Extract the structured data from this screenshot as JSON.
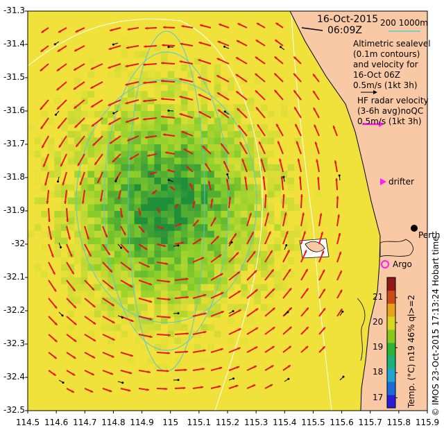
{
  "map": {
    "lon_range": [
      114.5,
      115.9
    ],
    "lat_range": [
      -32.5,
      -31.3
    ],
    "lon_ticks": [
      "114.5",
      "114.6",
      "114.7",
      "114.8",
      "114.9",
      "115",
      "115.1",
      "115.2",
      "115.3",
      "115.4",
      "115.5",
      "115.6",
      "115.7",
      "115.8",
      "115.9"
    ],
    "lat_ticks": [
      "-31.3",
      "-31.4",
      "-31.5",
      "-31.6",
      "-31.7",
      "-31.8",
      "-31.9",
      "-32",
      "-32.1",
      "-32.2",
      "-32.3",
      "-32.4",
      "-32.5"
    ],
    "colors": {
      "land": "#f8c9a4",
      "sst_low": "#1f8f3a",
      "sst_mid": "#8ccf2a",
      "sst_high": "#f0e23a",
      "radar_arrow": "#e8161b",
      "sealevel_contour": "#57c7d6",
      "bathy_contour": "#ffffff",
      "drifter": "#ff19ff",
      "argo": "#ff19ff"
    }
  },
  "legend": {
    "date": "16-Oct-2015",
    "time": "06:09Z",
    "bathymetry": "200  1000m",
    "altimetry_line1": "Altimetric sealevel",
    "altimetry_line2": "(0.1m contours)",
    "altimetry_line3": "and velocity for",
    "altimetry_line4": "16-Oct 06Z",
    "altimetry_line5": "0.5m/s (1kt 3h)",
    "radar_line1": "HF radar velocity",
    "radar_line2": "(3-6h avg)noQC",
    "radar_line3": "0.5m/s (1kt 3h)",
    "drifter": "drifter",
    "argo": "Argo",
    "perth": "Perth"
  },
  "colorbar": {
    "ticks": [
      "17",
      "18",
      "19",
      "20",
      "21"
    ],
    "range": [
      16.6,
      21.8
    ],
    "label": "Temp. (°C) n19 46% ql>=2"
  },
  "credit": "© IMOS 23-Oct-2015 17:13:24 Hobart time"
}
